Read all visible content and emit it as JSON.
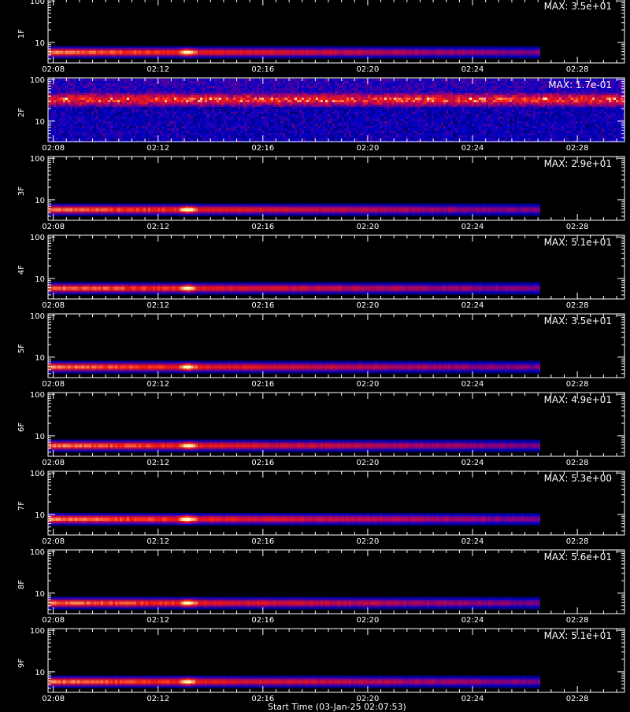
{
  "chart_data": {
    "type": "heatmap",
    "x_tick_labels": [
      "02:08",
      "02:12",
      "02:16",
      "02:20",
      "02:24",
      "02:28"
    ],
    "x_ticks_minutes": [
      8,
      12,
      16,
      20,
      24,
      28
    ],
    "x_range_minutes": [
      7.8,
      29.8
    ],
    "y_scale": "log",
    "y_tick_labels": [
      "100",
      "10"
    ],
    "y_range": [
      3.2,
      110
    ],
    "colors": {
      "background": "#000000",
      "axis": "#ffffff",
      "low": "#1010c8",
      "mid": "#d41414",
      "high": "#ffffc0"
    },
    "footer_text": "Start Time (03-Jan-25 02:07:53)",
    "panels": [
      {
        "label": "1F",
        "max_label": "MAX: 3.5e+01",
        "pattern": "band",
        "band_center": 6.0,
        "flare_minute": 13.1,
        "data_end_minute": 26.5
      },
      {
        "label": "2F",
        "max_label": "MAX: 1.7e-01",
        "pattern": "noise",
        "band_center": 35,
        "data_end_minute": 29.8
      },
      {
        "label": "3F",
        "max_label": "MAX: 2.9e+01",
        "pattern": "band",
        "band_center": 6.0,
        "flare_minute": 13.1,
        "data_end_minute": 26.5
      },
      {
        "label": "4F",
        "max_label": "MAX: 5.1e+01",
        "pattern": "band",
        "band_center": 6.0,
        "flare_minute": 13.1,
        "data_end_minute": 26.5
      },
      {
        "label": "5F",
        "max_label": "MAX: 3.5e+01",
        "pattern": "band",
        "band_center": 6.0,
        "flare_minute": 13.1,
        "data_end_minute": 26.5
      },
      {
        "label": "6F",
        "max_label": "MAX: 4.9e+01",
        "pattern": "band",
        "band_center": 6.0,
        "flare_minute": 13.1,
        "data_end_minute": 26.5
      },
      {
        "label": "7F",
        "max_label": "MAX: 5.3e+00",
        "pattern": "band",
        "band_center": 8.0,
        "flare_minute": 13.1,
        "data_end_minute": 26.5
      },
      {
        "label": "8F",
        "max_label": "MAX: 5.6e+01",
        "pattern": "band",
        "band_center": 6.0,
        "flare_minute": 13.1,
        "data_end_minute": 26.5
      },
      {
        "label": "9F",
        "max_label": "MAX: 5.1e+01",
        "pattern": "band",
        "band_center": 6.0,
        "flare_minute": 13.1,
        "data_end_minute": 26.5
      }
    ]
  }
}
